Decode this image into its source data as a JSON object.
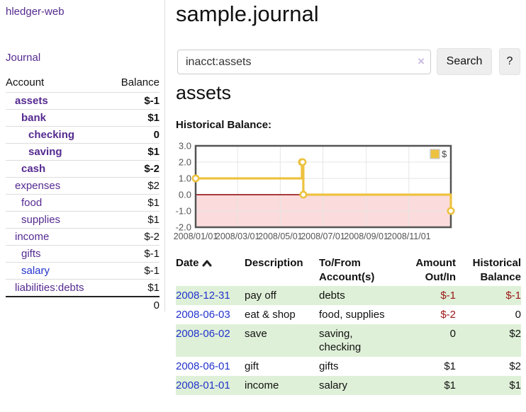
{
  "app": {
    "title": "hledger-web"
  },
  "colors": {
    "link_purple": "#552a90",
    "link_blue": "#2233cc",
    "negative_strong": "#9a1616",
    "negative_soft": "#b96a6a",
    "row_highlight": "#dff0d8",
    "button_bg": "#eeeeee",
    "divider": "#dddddd",
    "chart_line": "#EDC240",
    "chart_negative_fill": "#fbdbdb",
    "chart_zero_line": "#8b0000",
    "chart_border": "#545454",
    "chart_grid": "#e6e6e6"
  },
  "sidebar": {
    "journal_label": "Journal",
    "headers": [
      "Account",
      "Balance"
    ],
    "accounts": [
      {
        "name": "assets",
        "balance": "$-1",
        "indent": 1,
        "bold": true,
        "balance_style": "neg-strong"
      },
      {
        "name": "bank",
        "balance": "$1",
        "indent": 2,
        "bold": true,
        "balance_style": ""
      },
      {
        "name": "checking",
        "balance": "0",
        "indent": 3,
        "bold": true,
        "balance_style": ""
      },
      {
        "name": "saving",
        "balance": "$1",
        "indent": 3,
        "bold": true,
        "balance_style": ""
      },
      {
        "name": "cash",
        "balance": "$-2",
        "indent": 2,
        "bold": true,
        "balance_style": "neg-strong"
      },
      {
        "name": "expenses",
        "balance": "$2",
        "indent": 1,
        "bold": false,
        "balance_style": ""
      },
      {
        "name": "food",
        "balance": "$1",
        "indent": 2,
        "bold": false,
        "balance_style": ""
      },
      {
        "name": "supplies",
        "balance": "$1",
        "indent": 2,
        "bold": false,
        "balance_style": ""
      },
      {
        "name": "income",
        "balance": "$-2",
        "indent": 1,
        "bold": false,
        "balance_style": "neg-soft"
      },
      {
        "name": "gifts",
        "balance": "$-1",
        "indent": 2,
        "bold": false,
        "balance_style": "neg-soft"
      },
      {
        "name": "salary",
        "balance": "$-1",
        "indent": 2,
        "bold": false,
        "balance_style": "neg-soft",
        "link_style": "blue"
      },
      {
        "name": "liabilities:debts",
        "balance": "$1",
        "indent": 1,
        "bold": false,
        "balance_style": ""
      }
    ],
    "total": "0"
  },
  "main": {
    "title": "sample.journal",
    "search": {
      "value": "inacct:assets",
      "clear_icon": "×",
      "button_label": "Search",
      "help_label": "?"
    },
    "account_heading": "assets",
    "chart_heading": "Historical Balance:"
  },
  "chart_data": {
    "type": "line",
    "title": "Historical Balance:",
    "step": true,
    "series": [
      {
        "name": "$",
        "color": "#EDC240",
        "points": [
          [
            "2008-01-01",
            1
          ],
          [
            "2008-06-01",
            2
          ],
          [
            "2008-06-02",
            2
          ],
          [
            "2008-06-03",
            0
          ],
          [
            "2008-12-31",
            -1
          ]
        ]
      }
    ],
    "xlim": [
      "2008-01-01",
      "2008-12-31"
    ],
    "ylim": [
      -2,
      3
    ],
    "y_ticks": [
      {
        "value": 3,
        "label": "3.0"
      },
      {
        "value": 2,
        "label": "2.0"
      },
      {
        "value": 1,
        "label": "1.0"
      },
      {
        "value": 0,
        "label": "0.0"
      },
      {
        "value": -1,
        "label": "-1.0"
      },
      {
        "value": -2,
        "label": "-2.0"
      }
    ],
    "x_ticks": [
      {
        "date": "2008-01-01",
        "label": "2008/01/01"
      },
      {
        "date": "2008-03-01",
        "label": "2008/03/01"
      },
      {
        "date": "2008-05-01",
        "label": "2008/05/01"
      },
      {
        "date": "2008-07-01",
        "label": "2008/07/01"
      },
      {
        "date": "2008-09-01",
        "label": "2008/09/01"
      },
      {
        "date": "2008-11-01",
        "label": "2008/11/01"
      }
    ],
    "grid": true,
    "legend_position": "top-right",
    "legend": [
      "$"
    ]
  },
  "register": {
    "headers": [
      {
        "lines": [
          "Date"
        ],
        "align": "left",
        "sorted": "asc"
      },
      {
        "lines": [
          "Description"
        ],
        "align": "left"
      },
      {
        "lines": [
          "To/From",
          "Account(s)"
        ],
        "align": "left"
      },
      {
        "lines": [
          "Amount",
          "Out/In"
        ],
        "align": "right"
      },
      {
        "lines": [
          "Historical",
          "Balance"
        ],
        "align": "right"
      }
    ],
    "rows": [
      {
        "date": "2008-12-31",
        "description": "pay off",
        "accounts": "debts",
        "amount": "$-1",
        "amount_negative": true,
        "balance": "$-1",
        "balance_negative": true,
        "highlighted": true
      },
      {
        "date": "2008-06-03",
        "description": "eat & shop",
        "accounts": "food, supplies",
        "amount": "$-2",
        "amount_negative": true,
        "balance": "0",
        "balance_negative": false,
        "highlighted": false
      },
      {
        "date": "2008-06-02",
        "description": "save",
        "accounts": "saving, checking",
        "amount": "0",
        "amount_negative": false,
        "balance": "$2",
        "balance_negative": false,
        "highlighted": true
      },
      {
        "date": "2008-06-01",
        "description": "gift",
        "accounts": "gifts",
        "amount": "$1",
        "amount_negative": false,
        "balance": "$2",
        "balance_negative": false,
        "highlighted": false
      },
      {
        "date": "2008-01-01",
        "description": "income",
        "accounts": "salary",
        "amount": "$1",
        "amount_negative": false,
        "balance": "$1",
        "balance_negative": false,
        "highlighted": true
      }
    ]
  }
}
